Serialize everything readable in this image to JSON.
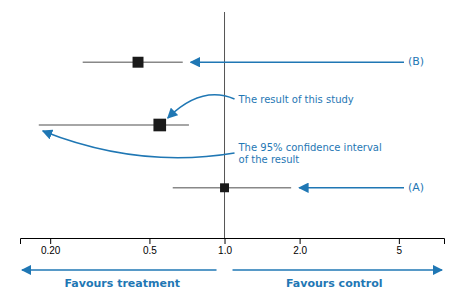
{
  "chart_data": {
    "type": "forest",
    "log": "x",
    "categories": [
      null,
      null,
      null
    ],
    "values": [
      0.45,
      0.55,
      1.0
    ],
    "ci_low": [
      0.27,
      0.18,
      0.62
    ],
    "ci_high": [
      0.68,
      0.72,
      1.85
    ],
    "sizes": [
      60,
      80,
      40
    ],
    "marker": "square",
    "color": "#1a1a1a",
    "vline": 1.0,
    "xlim": [
      0.15135612484362088,
      7.585775750291836
    ],
    "xticks": [
      {
        "value": 0.2,
        "label": "0.20"
      },
      0.5,
      {
        "value": 1,
        "label": "1.0"
      },
      {
        "value": 2,
        "label": "2.0"
      },
      5
    ],
    "row_labels": [
      "(B)",
      null,
      "(A)"
    ],
    "annotations": [
      "The result of this study",
      "The 95% confidence interval\nof the result"
    ],
    "direction_labels": [
      "Favours treatment",
      "Favours control"
    ],
    "grid": false,
    "tick_labels": "x"
  }
}
